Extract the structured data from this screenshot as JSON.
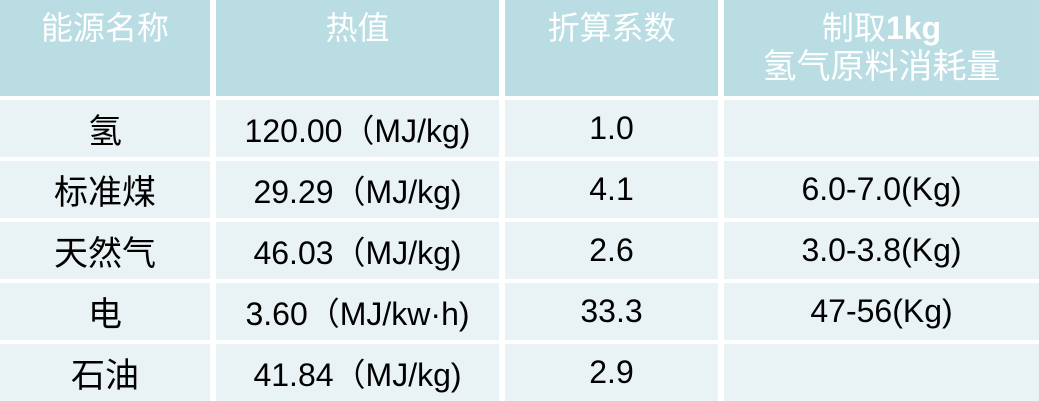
{
  "table": {
    "header": {
      "col1": "能源名称",
      "col2": "热值",
      "col3": "折算系数",
      "col4_prefix": "制取",
      "col4_bold": "1kg",
      "col4_line2": "氢气原料消耗量"
    },
    "rows": [
      {
        "name": "氢",
        "heat_value": "120.00（MJ/kg)",
        "coefficient": "1.0",
        "consumption": ""
      },
      {
        "name": "标准煤",
        "heat_value": "29.29（MJ/kg)",
        "coefficient": "4.1",
        "consumption": "6.0-7.0(Kg)"
      },
      {
        "name": "天然气",
        "heat_value": "46.03（MJ/kg)",
        "coefficient": "2.6",
        "consumption": "3.0-3.8(Kg)"
      },
      {
        "name": "电",
        "heat_value": "3.60（MJ/kw·h)",
        "coefficient": "33.3",
        "consumption": "47-56(Kg)"
      },
      {
        "name": "石油",
        "heat_value": "41.84（MJ/kg)",
        "coefficient": "2.9",
        "consumption": ""
      }
    ]
  },
  "colors": {
    "header_bg": "#b9dde2",
    "row_bg": "#e9f2f5",
    "header_text": "#ffffff",
    "body_text": "#000000",
    "gap": "#ffffff"
  }
}
